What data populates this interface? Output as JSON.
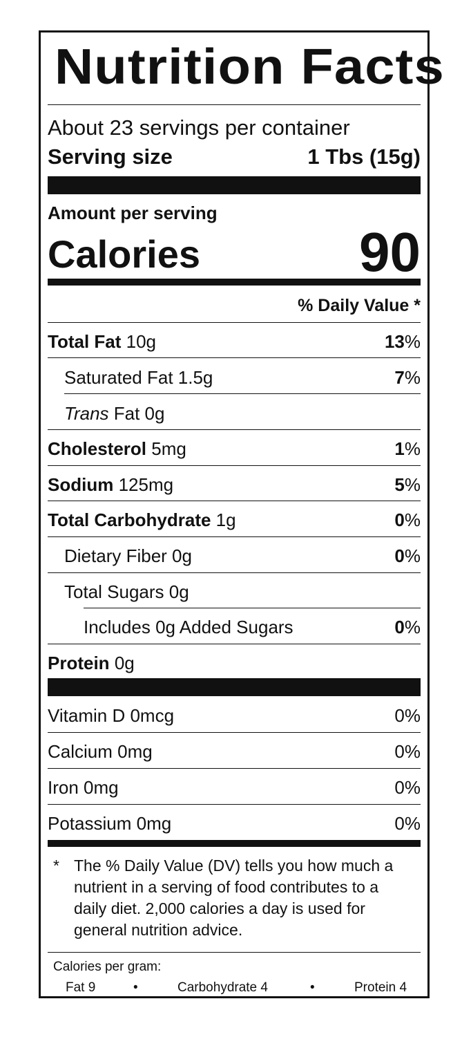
{
  "title": "Nutrition Facts",
  "servings_per_container": "About 23 servings per container",
  "serving_size": {
    "label": "Serving size",
    "value": "1 Tbs (15g)"
  },
  "amount_per_serving": "Amount per serving",
  "calories": {
    "label": "Calories",
    "value": "90"
  },
  "daily_value_header": "% Daily Value *",
  "nutrients": [
    {
      "bold": "Total Fat",
      "amount": "10g",
      "dv_num": "13",
      "dv_pct": "%"
    },
    {
      "name": "Saturated Fat 1.5g",
      "dv_num": "7",
      "dv_pct": "%"
    },
    {
      "italic": "Trans",
      "name": "Fat 0g"
    },
    {
      "bold": "Cholesterol",
      "amount": "5mg",
      "dv_num": "1",
      "dv_pct": "%"
    },
    {
      "bold": "Sodium",
      "amount": "125mg",
      "dv_num": "5",
      "dv_pct": "%"
    },
    {
      "bold": "Total Carbohydrate",
      "amount": "1g",
      "dv_num": "0",
      "dv_pct": "%"
    },
    {
      "name": "Dietary Fiber 0g",
      "dv_num": "0",
      "dv_pct": "%"
    },
    {
      "name": "Total Sugars 0g"
    },
    {
      "name": "Includes 0g Added Sugars",
      "dv_num": "0",
      "dv_pct": "%"
    },
    {
      "bold": "Protein",
      "amount": "0g"
    }
  ],
  "vitamins": [
    {
      "name": "Vitamin D 0mcg",
      "dv": "0%"
    },
    {
      "name": "Calcium 0mg",
      "dv": "0%"
    },
    {
      "name": "Iron 0mg",
      "dv": "0%"
    },
    {
      "name": "Potassium 0mg",
      "dv": "0%"
    }
  ],
  "footnote": {
    "star": "*",
    "text": "The % Daily Value (DV) tells you how much a nutrient in a serving of food contributes to a daily diet. 2,000 calories a day is used for general nutrition advice."
  },
  "calories_per_gram": {
    "label": "Calories per gram:",
    "fat": "Fat 9",
    "carb": "Carbohydrate 4",
    "protein": "Protein 4",
    "bullet": "•"
  }
}
